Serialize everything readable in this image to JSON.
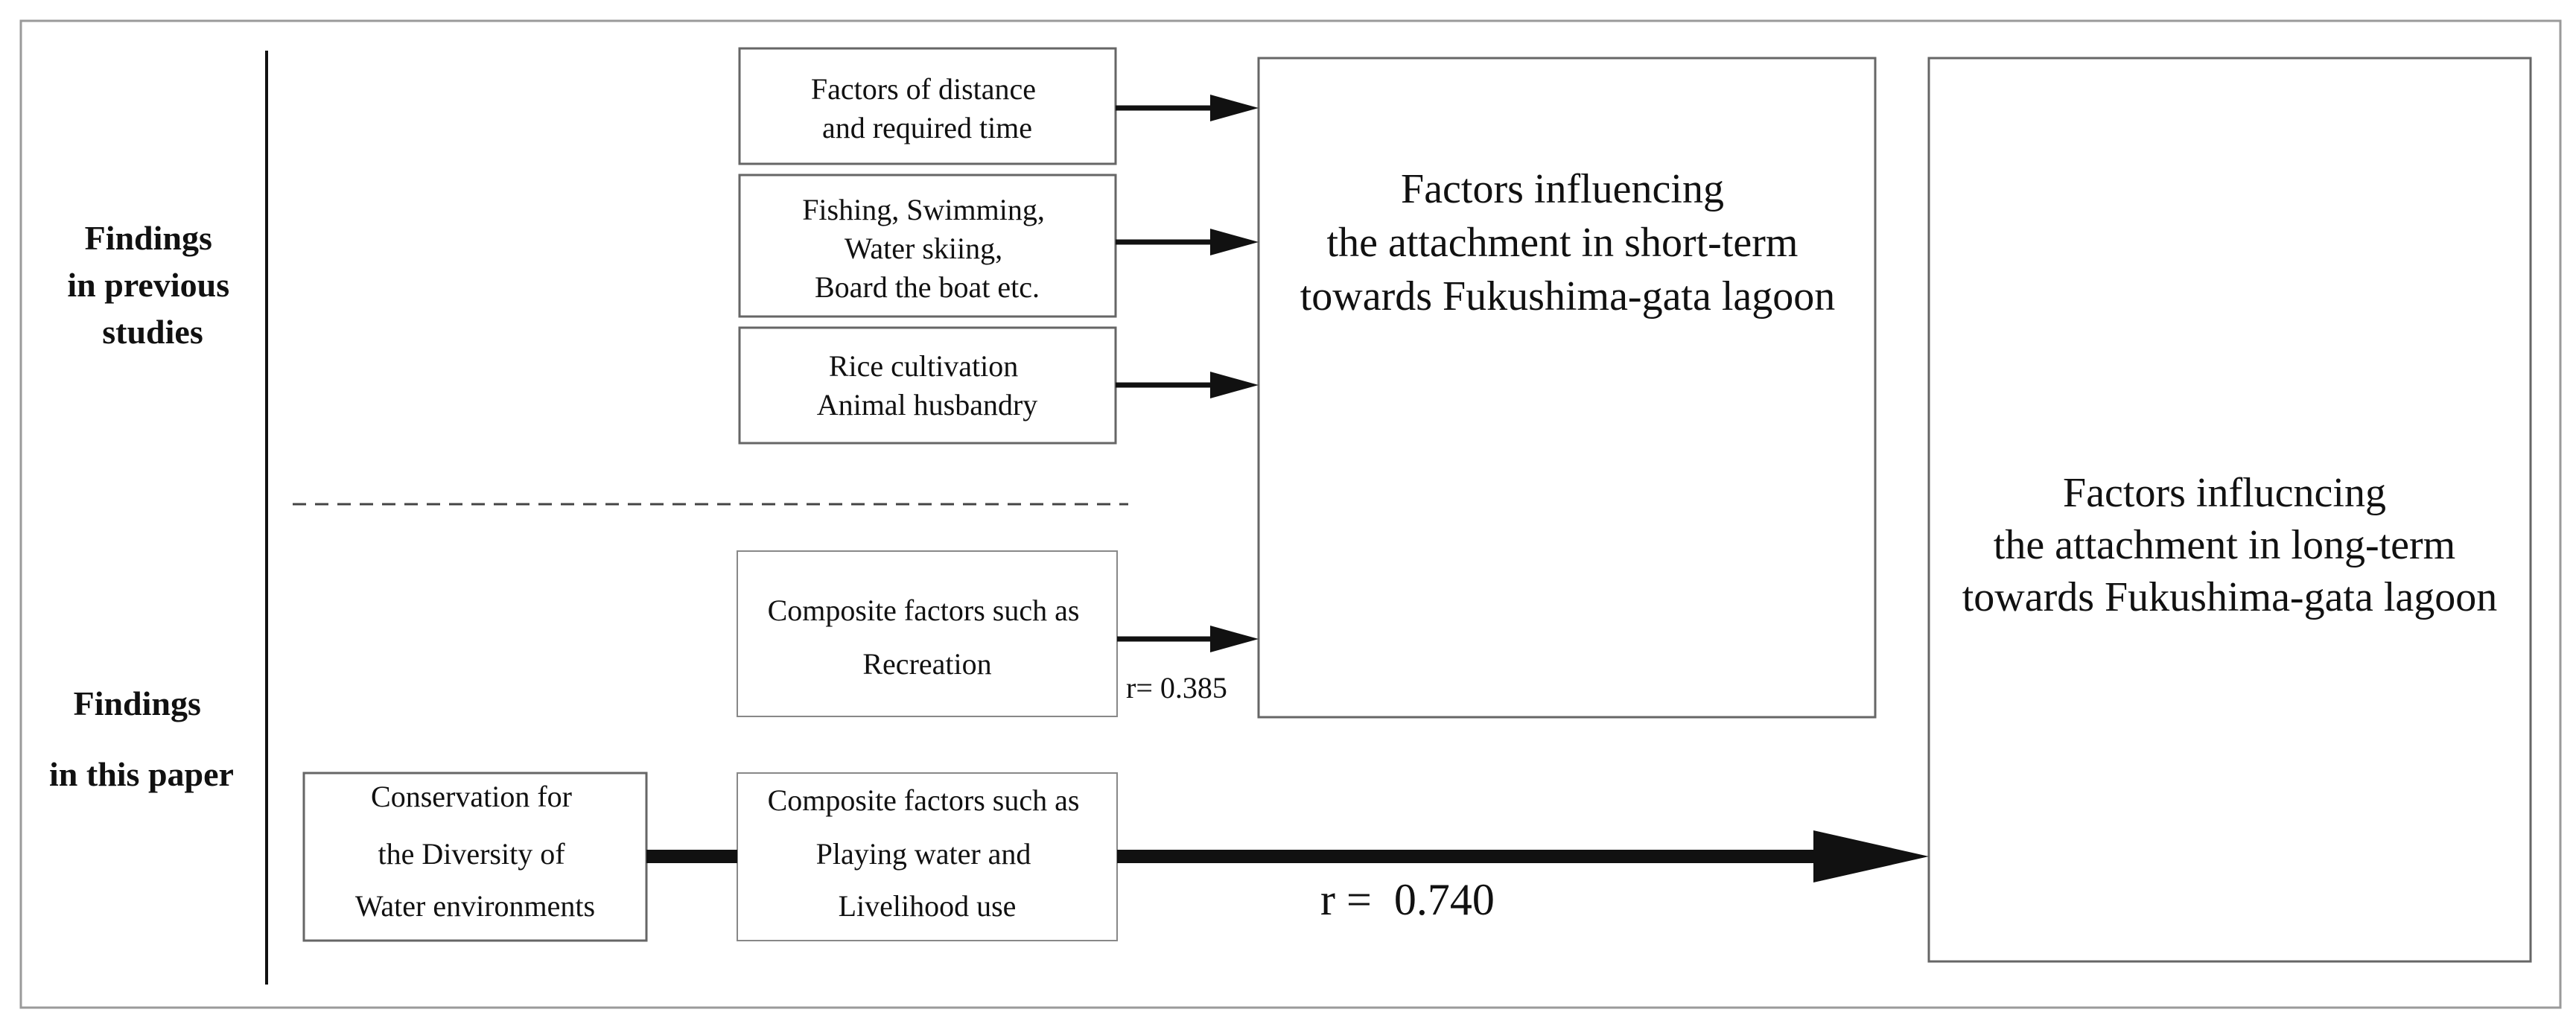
{
  "labels": {
    "previous": [
      "Findings",
      "in previous",
      "studies"
    ],
    "this_paper": [
      "Findings",
      "in this paper"
    ]
  },
  "boxes": {
    "distance": [
      "Factors of distance",
      "and required time"
    ],
    "fishing": [
      "Fishing, Swimming,",
      "Water skiing,",
      "Board the boat etc."
    ],
    "rice": [
      "Rice cultivation",
      "Animal husbandry"
    ],
    "recreation": [
      "Composite factors such as",
      "Recreation"
    ],
    "conservation": [
      "Conservation for",
      "the Diversity of",
      "Water environments"
    ],
    "playing": [
      "Composite factors such as",
      "Playing water and",
      "Livelihood use"
    ],
    "short_term": [
      "Factors influencing",
      "the attachment in short-term",
      "towards Fukushima-gata lagoon"
    ],
    "long_term": [
      "Factors influcncing",
      "the attachment in long-term",
      "towards Fukushima-gata lagoon"
    ]
  },
  "correlations": {
    "recreation": "r= 0.385",
    "playing": "r =  0.740"
  }
}
